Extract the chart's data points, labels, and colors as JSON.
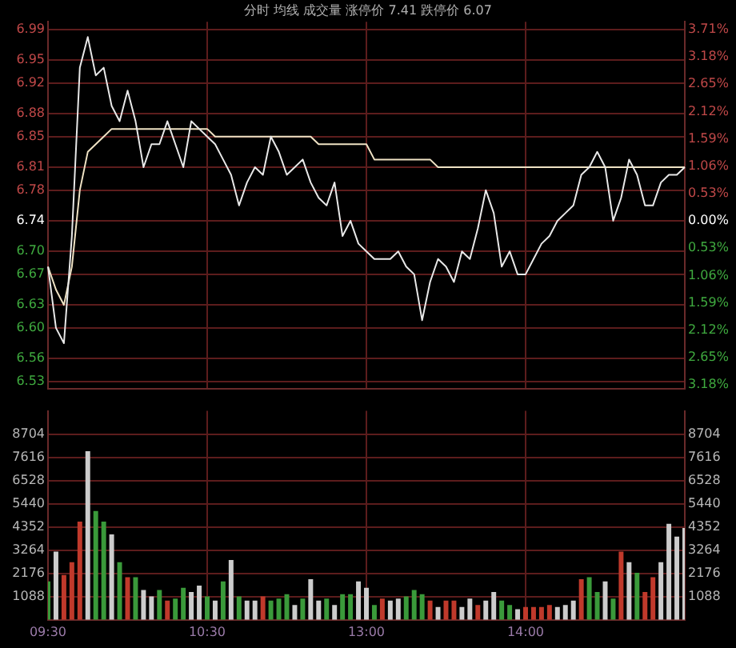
{
  "chart_data": [
    {
      "type": "line",
      "title": "分时 均线 成交量 涨停价 7.41 跌停价 6.07",
      "categories": [
        null,
        null,
        null,
        null,
        null,
        null,
        null,
        null,
        null,
        null,
        null,
        null,
        null,
        null,
        null,
        null,
        null,
        null,
        null,
        null,
        null,
        null,
        null,
        null,
        null,
        null,
        null,
        null,
        null,
        null,
        null,
        null,
        null,
        null,
        null,
        null,
        null,
        null,
        null,
        null,
        null,
        null,
        null,
        null,
        null,
        null,
        null,
        null,
        null,
        null,
        null,
        null,
        null,
        null,
        null,
        null,
        null,
        null,
        null,
        null,
        null,
        null,
        null,
        null,
        null,
        null,
        null,
        null,
        null,
        null,
        null,
        null,
        null,
        null,
        null,
        null,
        null,
        null,
        null,
        null,
        null
      ],
      "ylim": [
        6.52,
        7.0
      ],
      "y2lim": [
        -3.26,
        3.86
      ],
      "yticks": [
        6.99,
        6.95,
        6.92,
        6.88,
        6.85,
        6.81,
        6.78,
        6.74,
        {
          "value": 6.7,
          "label": "6.70"
        },
        6.67,
        6.63,
        {
          "value": 6.6,
          "label": "6.60"
        },
        6.56,
        6.53
      ],
      "y2ticks": [
        {
          "value": 3.71,
          "label": "3.71%"
        },
        {
          "value": 3.18,
          "label": "3.18%"
        },
        {
          "value": 2.65,
          "label": "2.65%"
        },
        {
          "value": 2.12,
          "label": "2.12%"
        },
        {
          "value": 1.59,
          "label": "1.59%"
        },
        {
          "value": 1.06,
          "label": "1.06%"
        },
        {
          "value": 0.53,
          "label": "0.53%"
        },
        {
          "value": 0,
          "label": "0.00%"
        },
        {
          "value": -0.53,
          "label": "0.53%"
        },
        {
          "value": -1.06,
          "label": "1.06%"
        },
        {
          "value": -1.59,
          "label": "1.59%"
        },
        {
          "value": -2.12,
          "label": "2.12%"
        },
        {
          "value": -2.65,
          "label": "2.65%"
        },
        {
          "value": -3.18,
          "label": "3.18%"
        }
      ],
      "tick_labels": "y",
      "grid": true,
      "series": [
        {
          "color": "#e8e8e8",
          "values": [
            6.68,
            6.6,
            6.58,
            6.72,
            6.94,
            6.98,
            6.93,
            6.94,
            6.89,
            6.87,
            6.91,
            6.87,
            6.81,
            6.84,
            6.84,
            6.87,
            6.84,
            6.81,
            6.87,
            6.86,
            6.85,
            6.84,
            6.82,
            6.8,
            6.76,
            6.79,
            6.81,
            6.8,
            6.85,
            6.83,
            6.8,
            6.81,
            6.82,
            6.79,
            6.77,
            6.76,
            6.79,
            6.72,
            6.74,
            6.71,
            6.7,
            6.69,
            6.69,
            6.69,
            6.7,
            6.68,
            6.67,
            6.61,
            6.66,
            6.69,
            6.68,
            6.66,
            6.7,
            6.69,
            6.73,
            6.78,
            6.75,
            6.68,
            6.7,
            6.67,
            6.67,
            6.69,
            6.71,
            6.72,
            6.74,
            6.75,
            6.76,
            6.8,
            6.81,
            6.83,
            6.81,
            6.74,
            6.77,
            6.82,
            6.8,
            6.76,
            6.76,
            6.79,
            6.8,
            6.8,
            6.81
          ]
        },
        {
          "color": "#efe2c4",
          "values": [
            6.68,
            6.65,
            6.63,
            6.68,
            6.78,
            6.83,
            6.84,
            6.85,
            6.86,
            6.86,
            6.86,
            6.86,
            6.86,
            6.86,
            6.86,
            6.86,
            6.86,
            6.86,
            6.86,
            6.86,
            6.86,
            6.85,
            6.85,
            6.85,
            6.85,
            6.85,
            6.85,
            6.85,
            6.85,
            6.85,
            6.85,
            6.85,
            6.85,
            6.85,
            6.84,
            6.84,
            6.84,
            6.84,
            6.84,
            6.84,
            6.84,
            6.82,
            6.82,
            6.82,
            6.82,
            6.82,
            6.82,
            6.82,
            6.82,
            6.81,
            6.81,
            6.81,
            6.81,
            6.81,
            6.81,
            6.81,
            6.81,
            6.81,
            6.81,
            6.81,
            6.81,
            6.81,
            6.81,
            6.81,
            6.81,
            6.81,
            6.81,
            6.81,
            6.81,
            6.81,
            6.81,
            6.81,
            6.81,
            6.81,
            6.81,
            6.81,
            6.81,
            6.81,
            6.81,
            6.81,
            6.81
          ]
        }
      ]
    },
    {
      "type": "bar",
      "categories": [
        "09:30",
        null,
        null,
        null,
        null,
        null,
        null,
        null,
        null,
        null,
        null,
        null,
        null,
        null,
        null,
        null,
        null,
        null,
        null,
        null,
        "10:30",
        null,
        null,
        null,
        null,
        null,
        null,
        null,
        null,
        null,
        null,
        null,
        null,
        null,
        null,
        null,
        null,
        null,
        null,
        null,
        "13:00",
        null,
        null,
        null,
        null,
        null,
        null,
        null,
        null,
        null,
        null,
        null,
        null,
        null,
        null,
        null,
        null,
        null,
        null,
        null,
        "14:00",
        null,
        null,
        null,
        null,
        null,
        null,
        null,
        null,
        null,
        null,
        null,
        null,
        null,
        null,
        null,
        null,
        null,
        null,
        null,
        null
      ],
      "ylim": [
        0,
        9792
      ],
      "y2lim": [
        0,
        9792
      ],
      "yticks": [
        1088,
        2176,
        3264,
        4352,
        5440,
        6528,
        7616,
        8704
      ],
      "y2ticks": [
        1088,
        2176,
        3264,
        4352,
        5440,
        6528,
        7616,
        8704
      ],
      "grid": true,
      "values": [
        1800,
        3200,
        2100,
        2700,
        4600,
        7900,
        5100,
        4600,
        4000,
        2700,
        2000,
        2000,
        1400,
        1100,
        1400,
        900,
        1000,
        1500,
        1300,
        1600,
        1100,
        900,
        1800,
        2800,
        1100,
        900,
        900,
        1100,
        900,
        1000,
        1200,
        700,
        1000,
        1900,
        900,
        1000,
        700,
        1200,
        1200,
        1800,
        1500,
        700,
        1000,
        900,
        1000,
        1100,
        1400,
        1200,
        900,
        600,
        900,
        900,
        600,
        1000,
        700,
        900,
        1300,
        900,
        700,
        500,
        600,
        600,
        600,
        700,
        600,
        700,
        900,
        1900,
        2000,
        1300,
        1800,
        1000,
        3200,
        2700,
        2200,
        1300,
        2000,
        2700,
        4500,
        3900,
        4300
      ],
      "colors": [
        "#3a9a3a",
        "#cccccc",
        "#c0392b",
        "#c0392b",
        "#c0392b",
        "#cccccc",
        "#3a9a3a",
        "#3a9a3a",
        "#cccccc",
        "#3a9a3a",
        "#c0392b",
        "#3a9a3a",
        "#cccccc",
        "#cccccc",
        "#3a9a3a",
        "#c0392b",
        "#3a9a3a",
        "#3a9a3a",
        "#cccccc",
        "#cccccc",
        "#3a9a3a",
        "#cccccc",
        "#3a9a3a",
        "#cccccc",
        "#3a9a3a",
        "#cccccc",
        "#cccccc",
        "#c0392b",
        "#3a9a3a",
        "#3a9a3a",
        "#3a9a3a",
        "#cccccc",
        "#3a9a3a",
        "#cccccc",
        "#cccccc",
        "#3a9a3a",
        "#cccccc",
        "#3a9a3a",
        "#3a9a3a",
        "#cccccc",
        "#cccccc",
        "#3a9a3a",
        "#c0392b",
        "#cccccc",
        "#cccccc",
        "#3a9a3a",
        "#3a9a3a",
        "#3a9a3a",
        "#c0392b",
        "#cccccc",
        "#c0392b",
        "#c0392b",
        "#cccccc",
        "#cccccc",
        "#c0392b",
        "#cccccc",
        "#cccccc",
        "#3a9a3a",
        "#3a9a3a",
        "#cccccc",
        "#c0392b",
        "#c0392b",
        "#c0392b",
        "#c0392b",
        "#cccccc",
        "#cccccc",
        "#cccccc",
        "#c0392b",
        "#3a9a3a",
        "#3a9a3a",
        "#cccccc",
        "#3a9a3a",
        "#c0392b",
        "#cccccc",
        "#3a9a3a",
        "#c0392b",
        "#c0392b",
        "#cccccc",
        "#cccccc",
        "#cccccc",
        "#cccccc"
      ]
    }
  ]
}
